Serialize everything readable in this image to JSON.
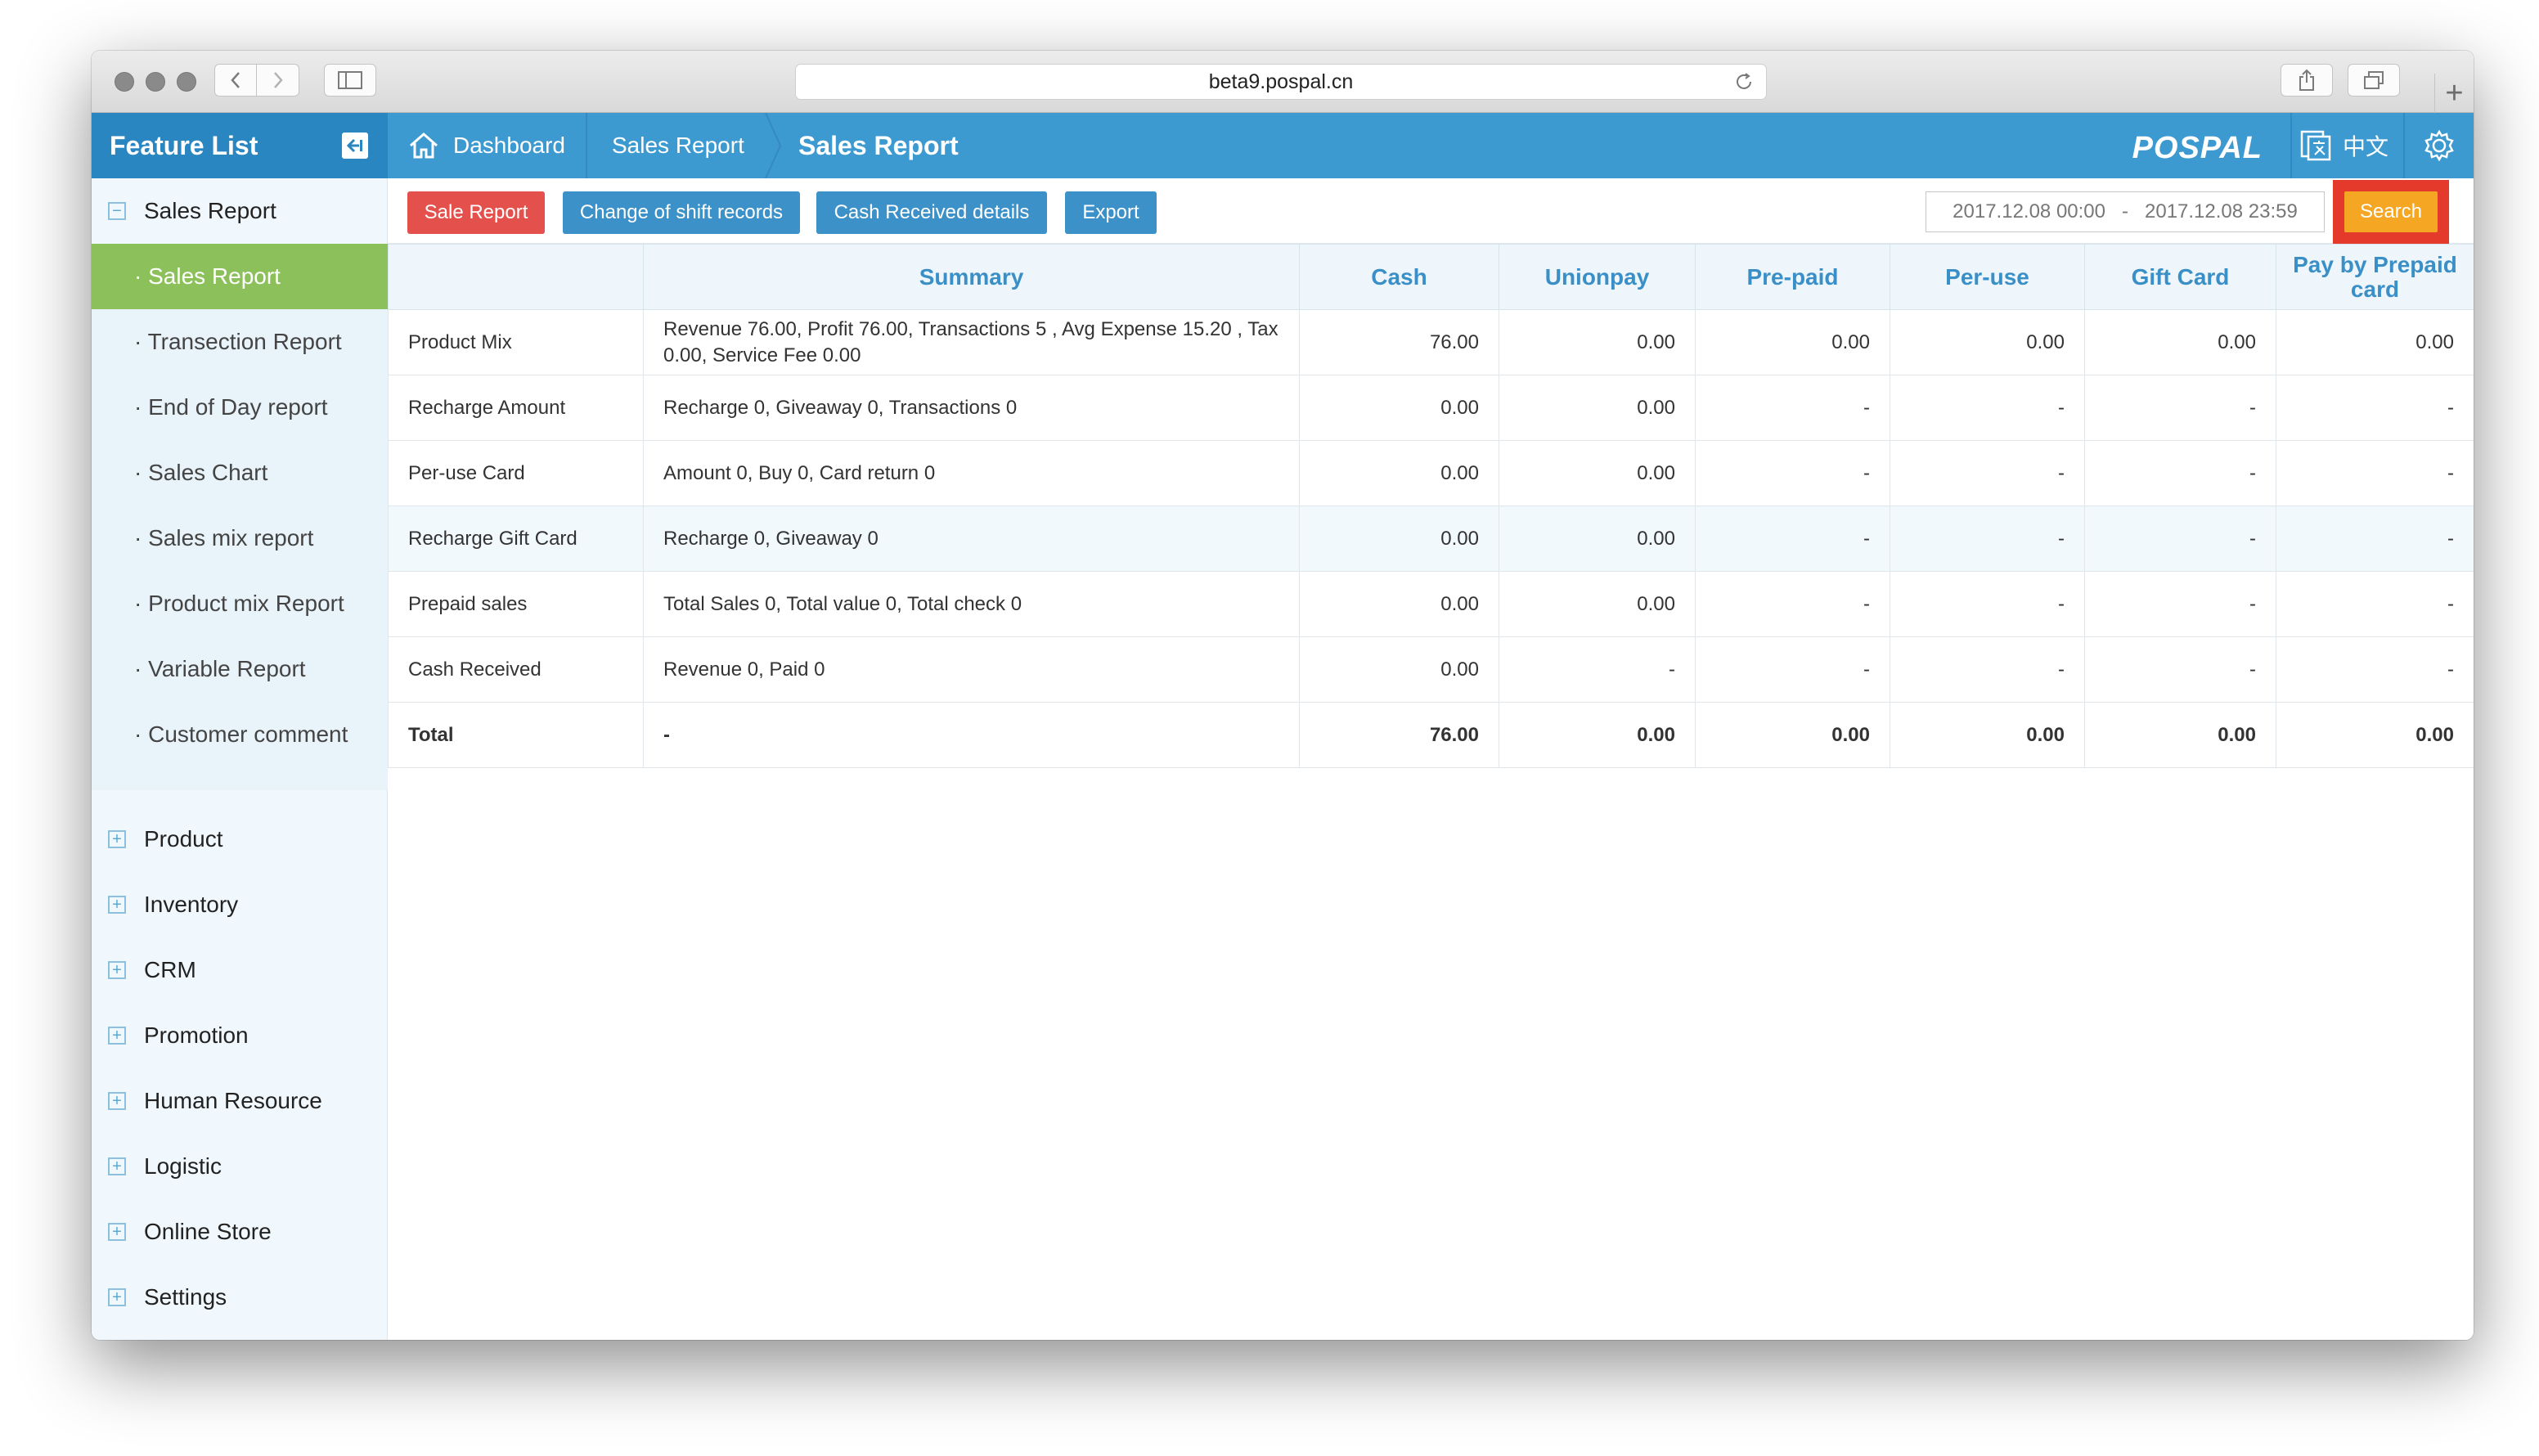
{
  "browser": {
    "url": "beta9.pospal.cn"
  },
  "header": {
    "feature_list": "Feature List",
    "breadcrumbs": [
      "Dashboard",
      "Sales Report",
      "Sales Report"
    ],
    "logo": "POSPAL",
    "language": "中文"
  },
  "sidebar": {
    "expanded_group": "Sales Report",
    "sub_items": [
      {
        "label": "· Sales Report"
      },
      {
        "label": "· Transection Report"
      },
      {
        "label": "· End of Day report"
      },
      {
        "label": "· Sales Chart"
      },
      {
        "label": "· Sales mix report"
      },
      {
        "label": "· Product mix Report"
      },
      {
        "label": "· Variable Report"
      },
      {
        "label": "· Customer comment"
      }
    ],
    "groups": [
      {
        "label": "Product"
      },
      {
        "label": "Inventory"
      },
      {
        "label": "CRM"
      },
      {
        "label": "Promotion"
      },
      {
        "label": "Human Resource"
      },
      {
        "label": "Logistic"
      },
      {
        "label": "Online Store"
      },
      {
        "label": "Settings"
      }
    ]
  },
  "toolbar": {
    "sale_report": "Sale Report",
    "shift_records": "Change of shift records",
    "cash_received": "Cash Received details",
    "export": "Export",
    "date_from": "2017.12.08 00:00",
    "date_sep": "-",
    "date_to": "2017.12.08 23:59",
    "search": "Search"
  },
  "table": {
    "headers": [
      "",
      "Summary",
      "Cash",
      "Unionpay",
      "Pre-paid",
      "Per-use",
      "Gift Card",
      "Pay by Prepaid card"
    ],
    "rows": [
      {
        "name": "Product Mix",
        "summary": "Revenue 76.00, Profit 76.00, Transactions 5 , Avg Expense 15.20 , Tax 0.00, Service Fee 0.00",
        "cash": "76.00",
        "unionpay": "0.00",
        "prepaid": "0.00",
        "peruse": "0.00",
        "giftcard": "0.00",
        "prepaidcard": "0.00"
      },
      {
        "name": "Recharge Amount",
        "summary": "Recharge 0, Giveaway 0, Transactions 0",
        "cash": "0.00",
        "unionpay": "0.00",
        "prepaid": "-",
        "peruse": "-",
        "giftcard": "-",
        "prepaidcard": "-"
      },
      {
        "name": "Per-use Card",
        "summary": "Amount 0, Buy 0, Card return 0",
        "cash": "0.00",
        "unionpay": "0.00",
        "prepaid": "-",
        "peruse": "-",
        "giftcard": "-",
        "prepaidcard": "-"
      },
      {
        "name": "Recharge Gift Card",
        "summary": "Recharge 0, Giveaway 0",
        "cash": "0.00",
        "unionpay": "0.00",
        "prepaid": "-",
        "peruse": "-",
        "giftcard": "-",
        "prepaidcard": "-"
      },
      {
        "name": "Prepaid sales",
        "summary": "Total Sales 0, Total value 0, Total check 0",
        "cash": "0.00",
        "unionpay": "0.00",
        "prepaid": "-",
        "peruse": "-",
        "giftcard": "-",
        "prepaidcard": "-"
      },
      {
        "name": "Cash Received",
        "summary": "Revenue 0, Paid 0",
        "cash": "0.00",
        "unionpay": "-",
        "prepaid": "-",
        "peruse": "-",
        "giftcard": "-",
        "prepaidcard": "-"
      },
      {
        "name": "Total",
        "summary": "-",
        "cash": "76.00",
        "unionpay": "0.00",
        "prepaid": "0.00",
        "peruse": "0.00",
        "giftcard": "0.00",
        "prepaidcard": "0.00"
      }
    ]
  }
}
